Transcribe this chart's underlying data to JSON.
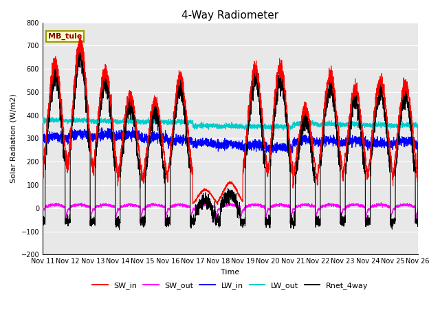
{
  "title": "4-Way Radiometer",
  "xlabel": "Time",
  "ylabel": "Solar Radiation (W/m2)",
  "ylim": [
    -200,
    800
  ],
  "xlim": [
    0,
    15
  ],
  "x_tick_labels": [
    "Nov 11",
    "Nov 12",
    "Nov 13",
    "Nov 14",
    "Nov 15",
    "Nov 16",
    "Nov 17",
    "Nov 18",
    "Nov 19",
    "Nov 20",
    "Nov 21",
    "Nov 22",
    "Nov 23",
    "Nov 24",
    "Nov 25",
    "Nov 26"
  ],
  "yticks": [
    -200,
    -100,
    0,
    100,
    200,
    300,
    400,
    500,
    600,
    700,
    800
  ],
  "background_color": "#e8e8e8",
  "figure_color": "#ffffff",
  "station_label": "MB_tule",
  "station_label_color": "#8b0000",
  "station_box_color": "#ffffcc",
  "station_box_edge": "#999900",
  "sw_in_color": "#ff0000",
  "sw_out_color": "#ff00ff",
  "lw_in_color": "#0000ff",
  "lw_out_color": "#00cccc",
  "rnet_color": "#000000",
  "days": 15,
  "n_points": 4000,
  "sw_in_amps": [
    620,
    710,
    590,
    490,
    460,
    560,
    80,
    110,
    600,
    605,
    430,
    570,
    515,
    550,
    530
  ],
  "lw_in_base": 295,
  "lw_out_base": 370
}
